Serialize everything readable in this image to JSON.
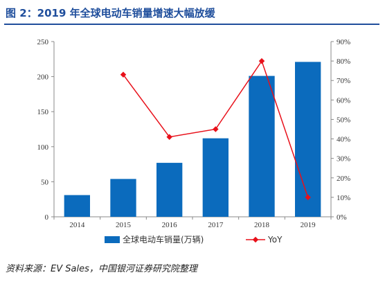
{
  "figure": {
    "title": "图 2：2019 年全球电动车销量增速大幅放缓",
    "source": "资料来源：EV Sales，中国银河证券研究院整理"
  },
  "colors": {
    "title": "#1f4e9c",
    "bar": "#0b6bbd",
    "line": "#e8101a",
    "axis": "#888888"
  },
  "chart_data": {
    "type": "bar",
    "categories": [
      "2014",
      "2015",
      "2016",
      "2017",
      "2018",
      "2019"
    ],
    "series": [
      {
        "name": "全球电动车销量(万辆)",
        "type": "bar",
        "axis": "left",
        "values": [
          31,
          54,
          77,
          112,
          201,
          221
        ]
      },
      {
        "name": "YoY",
        "type": "line",
        "axis": "right",
        "values": [
          null,
          73,
          41,
          45,
          80,
          10
        ]
      }
    ],
    "ylim": [
      0,
      250
    ],
    "yticks": [
      "0",
      "50",
      "100",
      "150",
      "200",
      "250"
    ],
    "y2lim": [
      0,
      90
    ],
    "y2ticks": [
      "0%",
      "10%",
      "20%",
      "30%",
      "40%",
      "50%",
      "60%",
      "70%",
      "80%",
      "90%"
    ],
    "grid": false,
    "legend_position": "bottom"
  }
}
